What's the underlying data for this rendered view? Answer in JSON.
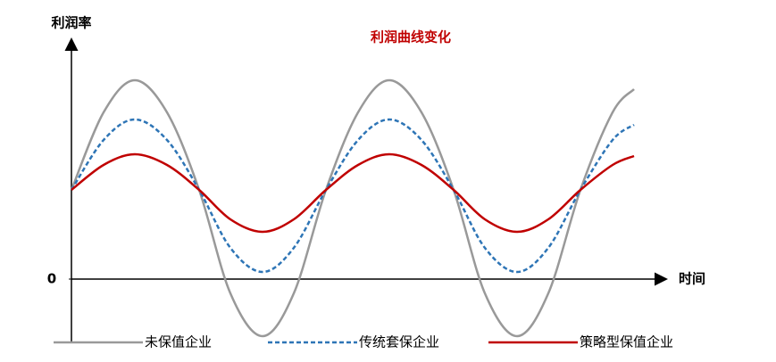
{
  "chart_data": {
    "type": "line",
    "title": "利润曲线变化",
    "title_color": "#c00000",
    "ylabel": "利润率",
    "xlabel": "时间",
    "x": [
      0,
      3.6,
      7.1,
      10.7,
      14.3,
      17.8,
      21.4,
      24.9,
      28.5,
      32.1,
      35.6,
      39.2,
      42.8,
      46.3,
      49.9,
      53.4,
      57,
      60.6,
      63
    ],
    "xlim": [
      0,
      66
    ],
    "ylim": [
      -7,
      30
    ],
    "yticks": [
      0
    ],
    "series": [
      {
        "name": "未保值企业",
        "color": "#999999",
        "dash": false,
        "values": [
          10,
          18.7,
          22.3,
          18.7,
          10,
          -1.6,
          -6.4,
          -1.6,
          10,
          18.7,
          22.3,
          18.7,
          10,
          -1.6,
          -6.4,
          -1.6,
          10,
          18.7,
          21.3
        ]
      },
      {
        "name": "传统套保企业",
        "color": "#2e75b6",
        "dash": true,
        "values": [
          10,
          15.6,
          17.9,
          15.6,
          10,
          3.5,
          0.8,
          3.5,
          10,
          15.6,
          17.9,
          15.6,
          10,
          3.5,
          0.8,
          3.5,
          10,
          15.6,
          17.3
        ]
      },
      {
        "name": "策略型保值企业",
        "color": "#c00000",
        "dash": false,
        "values": [
          10,
          12.8,
          14,
          12.8,
          10,
          6.7,
          5.3,
          6.7,
          10,
          12.8,
          14,
          12.8,
          10,
          6.7,
          5.3,
          6.7,
          10,
          12.8,
          13.8
        ]
      }
    ]
  }
}
